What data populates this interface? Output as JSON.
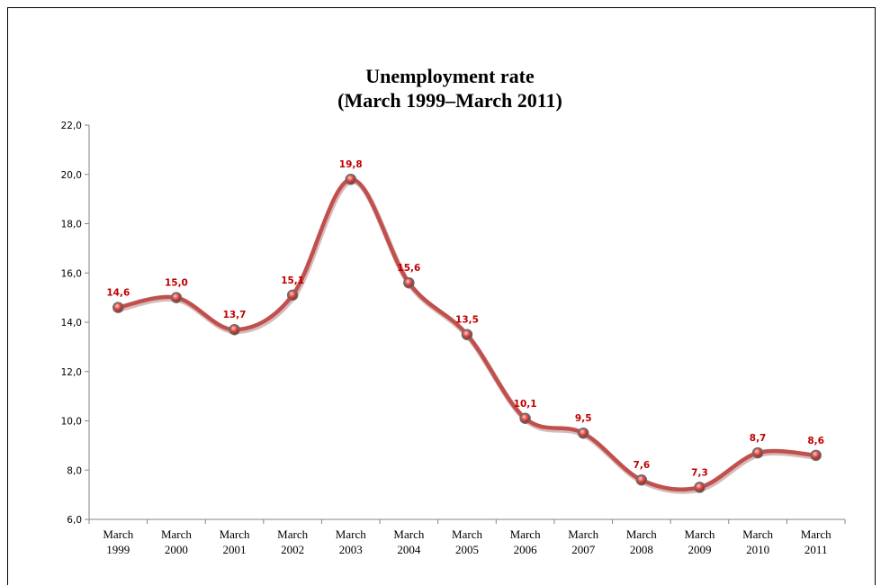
{
  "chart_data": {
    "type": "line",
    "title": "Unemployment rate",
    "subtitle": "(March 1999–March 2011)",
    "categories": [
      [
        "March",
        "1999"
      ],
      [
        "March",
        "2000"
      ],
      [
        "March",
        "2001"
      ],
      [
        "March",
        "2002"
      ],
      [
        "March",
        "2003"
      ],
      [
        "March",
        "2004"
      ],
      [
        "March",
        "2005"
      ],
      [
        "March",
        "2006"
      ],
      [
        "March",
        "2007"
      ],
      [
        "March",
        "2008"
      ],
      [
        "March",
        "2009"
      ],
      [
        "March",
        "2010"
      ],
      [
        "March",
        "2011"
      ]
    ],
    "values": [
      14.6,
      15.0,
      13.7,
      15.1,
      19.8,
      15.6,
      13.5,
      10.1,
      9.5,
      7.6,
      7.3,
      8.7,
      8.6
    ],
    "data_labels": [
      "14,6",
      "15,0",
      "13,7",
      "15,1",
      "19,8",
      "15,6",
      "13,5",
      "10,1",
      "9,5",
      "7,6",
      "7,3",
      "8,7",
      "8,6"
    ],
    "y_ticks": [
      "6,0",
      "8,0",
      "10,0",
      "12,0",
      "14,0",
      "16,0",
      "18,0",
      "20,0",
      "22,0"
    ],
    "ylim": [
      6,
      22
    ],
    "xlabel": "",
    "ylabel": "",
    "grid": false,
    "legend": "none",
    "line_style": "smooth",
    "colors": {
      "line": "#c0504d",
      "marker": "#d9534f",
      "label": "#c00000",
      "axis": "#868686"
    }
  }
}
